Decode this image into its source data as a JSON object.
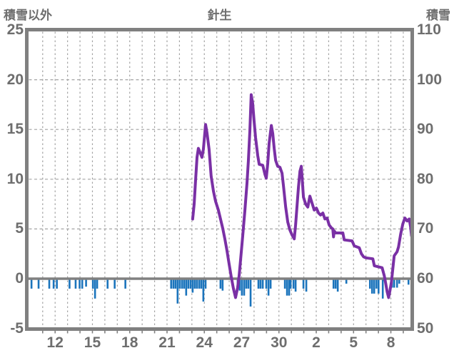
{
  "header": {
    "left_axis_title": "積雪以外",
    "station_title": "針生",
    "right_axis_title": "積雪"
  },
  "colors": {
    "snow_line": "#7a30a5",
    "bar": "#1b74bc",
    "border": "#808080",
    "zero_line": "#808080",
    "grid": "#a3a3a3",
    "text": "#6e6e6e"
  },
  "chart_data": {
    "type": "combo",
    "title": "針生",
    "grid": true,
    "left_axis": {
      "title": "積雪以外",
      "min": -5,
      "max": 25,
      "ticks": [
        25,
        20,
        15,
        10,
        5,
        0,
        -5
      ],
      "gridline_values": [
        20,
        15,
        10,
        5
      ]
    },
    "right_axis": {
      "title": "積雪",
      "min": 50,
      "max": 110,
      "ticks": [
        110,
        100,
        90,
        80,
        70,
        60,
        50
      ]
    },
    "x_axis": {
      "domain": [
        9.72,
        40.72
      ],
      "tick_days": [
        12,
        15,
        18,
        21,
        24,
        27,
        30,
        33,
        36,
        39
      ],
      "tick_labels": [
        "12",
        "15",
        "18",
        "21",
        "24",
        "27",
        "30",
        "2",
        "5",
        "8"
      ],
      "daily_gridlines": true
    },
    "series": [
      {
        "name": "積雪",
        "type": "line",
        "axis": "right",
        "color": "#7a30a5",
        "points": [
          [
            23.06,
            72
          ],
          [
            23.18,
            75
          ],
          [
            23.29,
            79.6
          ],
          [
            23.41,
            84.4
          ],
          [
            23.52,
            86.2
          ],
          [
            23.69,
            85.2
          ],
          [
            23.81,
            84.4
          ],
          [
            23.92,
            86
          ],
          [
            24.1,
            91
          ],
          [
            24.21,
            89.4
          ],
          [
            24.38,
            86
          ],
          [
            24.55,
            80.6
          ],
          [
            24.73,
            77.6
          ],
          [
            24.9,
            75.6
          ],
          [
            25.13,
            73.8
          ],
          [
            25.3,
            72
          ],
          [
            25.47,
            70.2
          ],
          [
            25.65,
            68
          ],
          [
            25.82,
            65.6
          ],
          [
            25.99,
            63
          ],
          [
            26.16,
            60.4
          ],
          [
            26.34,
            58
          ],
          [
            26.51,
            56.2
          ],
          [
            26.68,
            58.2
          ],
          [
            26.8,
            60.6
          ],
          [
            26.91,
            63.6
          ],
          [
            27.08,
            68.4
          ],
          [
            27.26,
            73.6
          ],
          [
            27.43,
            79.2
          ],
          [
            27.54,
            83.6
          ],
          [
            27.66,
            89.6
          ],
          [
            27.77,
            97
          ],
          [
            27.89,
            95.2
          ],
          [
            28,
            91.8
          ],
          [
            28.12,
            88.4
          ],
          [
            28.29,
            84.8
          ],
          [
            28.41,
            83
          ],
          [
            28.7,
            82.8
          ],
          [
            28.87,
            81
          ],
          [
            28.98,
            80.2
          ],
          [
            29.1,
            83.2
          ],
          [
            29.21,
            87.2
          ],
          [
            29.39,
            90.8
          ],
          [
            29.5,
            89.2
          ],
          [
            29.62,
            86.2
          ],
          [
            29.73,
            83.8
          ],
          [
            29.9,
            82.6
          ],
          [
            30.08,
            82.4
          ],
          [
            30.25,
            81.2
          ],
          [
            30.36,
            78.8
          ],
          [
            30.54,
            74.4
          ],
          [
            30.71,
            71.4
          ],
          [
            30.88,
            69.8
          ],
          [
            31.05,
            68.8
          ],
          [
            31.23,
            68
          ],
          [
            31.34,
            70.8
          ],
          [
            31.46,
            74.8
          ],
          [
            31.57,
            78.4
          ],
          [
            31.69,
            81.6
          ],
          [
            31.8,
            82.6
          ],
          [
            31.97,
            76.4
          ],
          [
            32.15,
            75
          ],
          [
            32.32,
            74.4
          ],
          [
            32.49,
            76.6
          ],
          [
            32.66,
            75.2
          ],
          [
            32.84,
            73.8
          ],
          [
            33.01,
            74.2
          ],
          [
            33.18,
            73.2
          ],
          [
            33.35,
            72.8
          ],
          [
            33.53,
            73.2
          ],
          [
            33.7,
            72
          ],
          [
            33.87,
            72.2
          ],
          [
            34.04,
            70.8
          ],
          [
            34.22,
            70.2
          ],
          [
            34.33,
            70
          ],
          [
            34.39,
            68.4
          ],
          [
            34.45,
            69.6
          ],
          [
            34.56,
            69.2
          ],
          [
            35.14,
            69.2
          ],
          [
            35.25,
            67.8
          ],
          [
            35.88,
            67.6
          ],
          [
            36.06,
            66.6
          ],
          [
            36.46,
            66.2
          ],
          [
            36.63,
            65
          ],
          [
            36.81,
            64.4
          ],
          [
            36.98,
            64.2
          ],
          [
            37.55,
            64
          ],
          [
            37.67,
            62.6
          ],
          [
            38.3,
            62.2
          ],
          [
            38.47,
            60.6
          ],
          [
            38.59,
            59
          ],
          [
            38.7,
            57.4
          ],
          [
            38.82,
            56.2
          ],
          [
            38.93,
            57.6
          ],
          [
            39.05,
            59.4
          ],
          [
            39.16,
            62
          ],
          [
            39.27,
            64.6
          ],
          [
            39.5,
            65.4
          ],
          [
            39.62,
            66.4
          ],
          [
            39.79,
            69
          ],
          [
            39.96,
            71
          ],
          [
            40.13,
            72.2
          ],
          [
            40.31,
            71.6
          ],
          [
            40.48,
            72
          ],
          [
            40.59,
            70.4
          ],
          [
            40.66,
            68.6
          ]
        ]
      },
      {
        "name": "積雪以外",
        "type": "bar",
        "axis": "left",
        "color": "#1b74bc",
        "bar_width": 2.6,
        "points": [
          [
            9.77,
            -1
          ],
          [
            10.1,
            -1
          ],
          [
            10.67,
            -1
          ],
          [
            11.53,
            -1
          ],
          [
            11.88,
            -1
          ],
          [
            12.14,
            -1
          ],
          [
            13.16,
            -1
          ],
          [
            13.65,
            -1
          ],
          [
            13.97,
            -1
          ],
          [
            14.18,
            -1
          ],
          [
            14.49,
            -0.8
          ],
          [
            15.04,
            -1
          ],
          [
            15.21,
            -2
          ],
          [
            15.38,
            -1
          ],
          [
            16.22,
            -1
          ],
          [
            16.79,
            -1
          ],
          [
            17.65,
            -1
          ],
          [
            21.33,
            -1
          ],
          [
            21.51,
            -1
          ],
          [
            21.68,
            -1
          ],
          [
            21.85,
            -2.5
          ],
          [
            22.02,
            -1
          ],
          [
            22.2,
            -1
          ],
          [
            22.37,
            -1
          ],
          [
            22.54,
            -1.7
          ],
          [
            22.71,
            -1
          ],
          [
            22.89,
            -1
          ],
          [
            23.06,
            -1.4
          ],
          [
            23.23,
            -1
          ],
          [
            23.4,
            -1
          ],
          [
            23.58,
            -1
          ],
          [
            23.75,
            -1
          ],
          [
            23.92,
            -2.3
          ],
          [
            24.1,
            -1
          ],
          [
            25.3,
            -1
          ],
          [
            25.47,
            -1.2
          ],
          [
            26.68,
            -1
          ],
          [
            26.85,
            -1.2
          ],
          [
            27.02,
            -1.7
          ],
          [
            27.2,
            -1.7
          ],
          [
            27.37,
            -1
          ],
          [
            27.54,
            -1
          ],
          [
            27.72,
            -2.8
          ],
          [
            28.35,
            -1
          ],
          [
            28.52,
            -1
          ],
          [
            28.7,
            -1
          ],
          [
            28.98,
            -1
          ],
          [
            29.16,
            -1.7
          ],
          [
            29.33,
            -1
          ],
          [
            30.48,
            -1
          ],
          [
            30.65,
            -1.7
          ],
          [
            30.82,
            -1.7
          ],
          [
            30.94,
            -1
          ],
          [
            31.17,
            -1
          ],
          [
            31.34,
            -1.3
          ],
          [
            31.97,
            -1
          ],
          [
            32.2,
            -1.3
          ],
          [
            34.39,
            -1
          ],
          [
            34.56,
            -1
          ],
          [
            34.73,
            -1.3
          ],
          [
            35.42,
            -0.5
          ],
          [
            37.32,
            -1
          ],
          [
            37.49,
            -1.5
          ],
          [
            37.66,
            -1.5
          ],
          [
            37.84,
            -1
          ],
          [
            38.01,
            -1.5
          ],
          [
            38.35,
            -2
          ],
          [
            39.1,
            -0.9
          ],
          [
            39.27,
            -0.9
          ],
          [
            39.5,
            -0.9
          ],
          [
            39.68,
            -0.5
          ],
          [
            40.42,
            -0.6
          ]
        ]
      }
    ]
  }
}
